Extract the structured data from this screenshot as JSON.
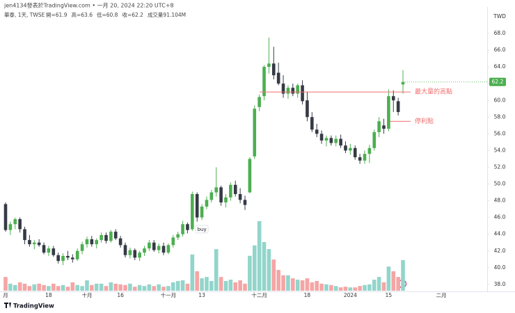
{
  "header": {
    "author": "jen4134發表於TradingView.com • 一月 20, 2024 22:20 UTC+8",
    "symbol": "華泰, 1天, TWSE",
    "stats": [
      "開=61.9",
      "高=63.6",
      "低=60.8",
      "收=62.2",
      "成交量91.104M"
    ]
  },
  "footer": {
    "logo": "TradingView"
  },
  "chart_data": {
    "type": "candlestick",
    "currency": "TWD",
    "up_color": "#4caf50",
    "down_color": "#363a45",
    "volume_up_color": "#92d5cb",
    "volume_down_color": "#f5a5a5",
    "categories": [
      "月",
      null,
      null,
      null,
      null,
      null,
      null,
      null,
      null,
      "18",
      null,
      null,
      null,
      null,
      null,
      null,
      null,
      "十月",
      null,
      null,
      null,
      null,
      null,
      null,
      "16",
      null,
      null,
      null,
      null,
      null,
      null,
      null,
      null,
      null,
      "十一月",
      null,
      null,
      null,
      null,
      null,
      null,
      "13",
      null,
      null,
      null,
      null,
      null,
      null,
      null,
      null,
      null,
      null,
      null,
      "十二月",
      null,
      null,
      null,
      null,
      null,
      null,
      null,
      null,
      null,
      "18",
      null,
      null,
      null,
      null,
      null,
      null,
      null,
      null,
      "2024",
      null,
      null,
      null,
      null,
      null,
      null,
      null,
      "15",
      null,
      null,
      null,
      null,
      null,
      null,
      null,
      null,
      null,
      null,
      "二月",
      null,
      null,
      null,
      null,
      null,
      null,
      null,
      null
    ],
    "open": [
      47.6,
      44.5,
      45.2,
      45.8,
      44.6,
      43.3,
      42.8,
      43.0,
      42.7,
      41.8,
      42.3,
      41.5,
      40.8,
      41.4,
      41.2,
      41.0,
      42.0,
      42.8,
      43.4,
      42.8,
      43.3,
      43.9,
      43.2,
      44.3,
      43.5,
      42.7,
      41.5,
      42.1,
      41.2,
      41.8,
      42.3,
      43.0,
      42.1,
      42.6,
      41.8,
      42.7,
      43.6,
      44.0,
      45.2,
      44.6,
      48.8,
      46.0,
      47.3,
      48.1,
      49.0,
      49.6,
      47.8,
      48.4,
      49.9,
      48.8,
      48.1,
      49.0,
      53.3,
      59.2,
      60.5,
      64.0,
      64.4,
      63.3,
      62.0,
      60.8,
      61.5,
      60.8,
      61.8,
      60.0,
      58.0,
      56.5,
      56.0,
      55.2,
      55.5,
      54.9,
      55.4,
      54.6,
      54.0,
      54.3,
      53.2,
      52.8,
      53.6,
      54.3,
      56.2,
      57.0,
      56.6,
      60.5,
      59.9,
      61.9,
      null,
      null,
      null,
      null,
      null,
      null,
      null,
      null,
      null,
      null,
      null,
      null,
      null,
      null,
      null,
      null
    ],
    "high": [
      47.8,
      45.5,
      46.0,
      46.0,
      44.9,
      43.9,
      43.3,
      43.4,
      43.0,
      42.6,
      42.6,
      41.8,
      41.7,
      42.0,
      41.6,
      42.3,
      43.1,
      43.7,
      43.8,
      43.5,
      44.2,
      44.2,
      44.5,
      44.6,
      43.8,
      43.0,
      42.4,
      42.3,
      42.0,
      42.6,
      43.3,
      43.3,
      42.9,
      43.0,
      42.9,
      43.9,
      44.3,
      45.6,
      45.4,
      49.1,
      49.0,
      47.6,
      48.5,
      49.3,
      52.0,
      49.8,
      48.8,
      50.2,
      50.4,
      49.5,
      48.6,
      53.2,
      59.4,
      60.7,
      64.2,
      67.5,
      66.4,
      64.5,
      63.0,
      61.8,
      62.0,
      62.0,
      62.4,
      61.0,
      58.6,
      57.2,
      56.4,
      55.8,
      55.8,
      55.8,
      55.9,
      55.1,
      54.8,
      54.6,
      53.6,
      54.0,
      54.7,
      56.5,
      58.0,
      57.8,
      61.3,
      61.2,
      60.3,
      63.6,
      null,
      null,
      null,
      null,
      null,
      null,
      null,
      null,
      null,
      null,
      null,
      null,
      null,
      null,
      null,
      null
    ],
    "low": [
      44.3,
      43.9,
      44.6,
      44.2,
      42.8,
      42.5,
      42.2,
      42.5,
      41.6,
      41.4,
      41.3,
      40.5,
      40.3,
      40.9,
      40.6,
      40.8,
      41.6,
      42.4,
      42.5,
      42.3,
      43.0,
      42.9,
      43.0,
      43.3,
      42.4,
      41.2,
      41.1,
      40.9,
      40.8,
      41.4,
      42.0,
      41.9,
      41.7,
      41.5,
      41.6,
      42.4,
      43.3,
      43.7,
      44.1,
      44.4,
      45.5,
      45.7,
      47.0,
      47.8,
      48.5,
      47.4,
      47.2,
      48.0,
      48.5,
      47.7,
      46.9,
      48.9,
      53.0,
      58.7,
      60.0,
      63.2,
      62.5,
      61.8,
      60.3,
      60.2,
      60.5,
      60.3,
      59.5,
      57.5,
      56.2,
      55.6,
      54.8,
      54.5,
      54.6,
      54.5,
      54.3,
      53.7,
      53.5,
      52.9,
      52.4,
      52.4,
      52.5,
      54.0,
      55.6,
      56.0,
      56.3,
      58.6,
      58.2,
      60.8,
      null,
      null,
      null,
      null,
      null,
      null,
      null,
      null,
      null,
      null,
      null,
      null,
      null,
      null,
      null,
      null
    ],
    "close": [
      44.5,
      45.2,
      45.8,
      44.6,
      43.3,
      42.8,
      43.0,
      42.7,
      41.8,
      42.3,
      41.5,
      40.8,
      41.4,
      41.2,
      41.0,
      42.0,
      42.8,
      43.4,
      42.8,
      43.3,
      43.9,
      43.2,
      44.3,
      43.5,
      42.7,
      41.5,
      42.1,
      41.2,
      41.8,
      42.3,
      43.0,
      42.1,
      42.6,
      41.8,
      42.7,
      43.6,
      44.0,
      45.2,
      44.5,
      48.8,
      46.0,
      47.3,
      48.1,
      49.0,
      49.6,
      47.8,
      48.4,
      49.9,
      48.8,
      48.1,
      47.5,
      53.0,
      59.0,
      60.4,
      64.0,
      64.4,
      63.0,
      62.0,
      60.8,
      61.5,
      60.8,
      61.8,
      59.9,
      58.0,
      56.5,
      56.0,
      55.2,
      55.5,
      54.9,
      55.4,
      54.6,
      54.0,
      54.3,
      53.2,
      52.8,
      53.6,
      54.3,
      56.2,
      57.5,
      56.6,
      60.5,
      60.0,
      58.6,
      62.2,
      null,
      null,
      null,
      null,
      null,
      null,
      null,
      null,
      null,
      null,
      null,
      null,
      null,
      null,
      null,
      null
    ],
    "volume": [
      41,
      21,
      17,
      25,
      21,
      14,
      19,
      21,
      17,
      14,
      21,
      14,
      17,
      12,
      25,
      17,
      14,
      31,
      17,
      21,
      21,
      14,
      25,
      21,
      19,
      17,
      21,
      12,
      17,
      14,
      19,
      14,
      19,
      12,
      14,
      25,
      29,
      31,
      21,
      108,
      58,
      37,
      41,
      29,
      124,
      41,
      29,
      33,
      25,
      31,
      21,
      104,
      135,
      207,
      145,
      124,
      93,
      62,
      46,
      46,
      37,
      33,
      31,
      37,
      25,
      29,
      21,
      19,
      17,
      14,
      10,
      12,
      10,
      10,
      14,
      17,
      19,
      33,
      41,
      25,
      72,
      58,
      41,
      91.104,
      null,
      null,
      null,
      null,
      null,
      null,
      null,
      null,
      null,
      null,
      null,
      null,
      null,
      null,
      null,
      null
    ],
    "ylim": [
      37.2,
      68.8
    ],
    "yticks": [
      {
        "value": 38,
        "label": "38.0"
      },
      {
        "value": 40,
        "label": "40.0"
      },
      {
        "value": 42,
        "label": "42.0"
      },
      {
        "value": 44,
        "label": "44.0"
      },
      {
        "value": 46,
        "label": "46.0"
      },
      {
        "value": 48,
        "label": "48.0"
      },
      {
        "value": 50,
        "label": "50.0"
      },
      {
        "value": 52,
        "label": "52.0"
      },
      {
        "value": 54,
        "label": "54.0"
      },
      {
        "value": 56,
        "label": "56.0"
      },
      {
        "value": 58,
        "label": "58.0"
      },
      {
        "value": 60,
        "label": "60.0"
      },
      {
        "value": 62,
        "label": "62.0"
      },
      {
        "value": 64,
        "label": "64.0"
      },
      {
        "value": 66,
        "label": "66.0"
      },
      {
        "value": 68,
        "label": "68.0"
      }
    ],
    "grid": false,
    "annotations": [
      {
        "text": "最大量的高點",
        "value": 61.0,
        "color": "#f06f6f"
      },
      {
        "text": "停利點",
        "value": 57.5,
        "color": "#f06f6f"
      }
    ],
    "buy_label": "buy"
  }
}
